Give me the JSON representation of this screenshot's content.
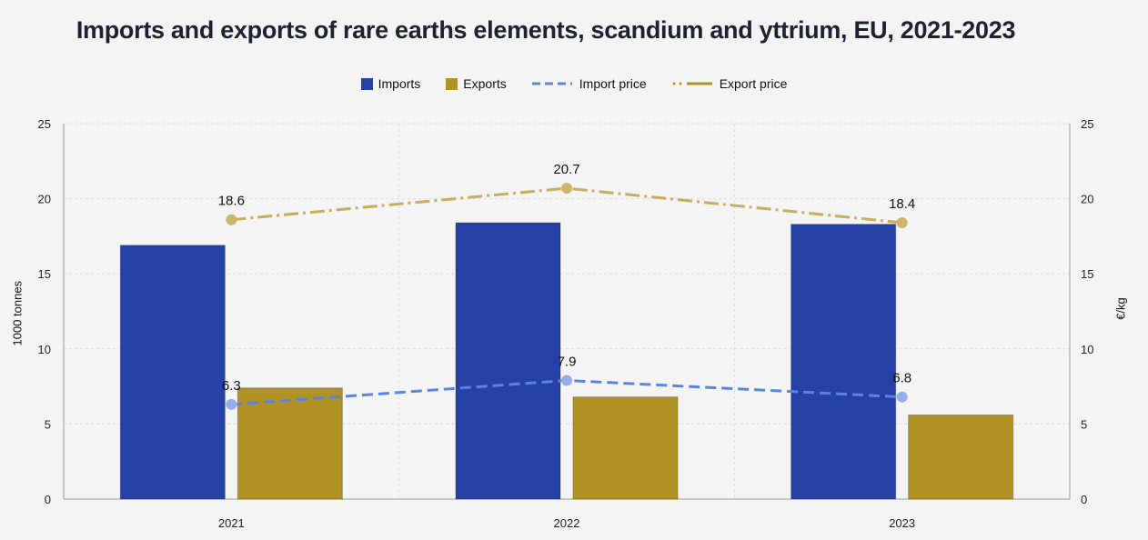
{
  "chart_data": {
    "type": "bar",
    "title": "Imports and exports of rare earths elements, scandium and yttrium, EU, 2021-2023",
    "categories": [
      "2021",
      "2022",
      "2023"
    ],
    "series": [
      {
        "name": "Imports",
        "kind": "bar",
        "axis": "left",
        "color": "#2541a5",
        "values": [
          16.9,
          18.4,
          18.3
        ]
      },
      {
        "name": "Exports",
        "kind": "bar",
        "axis": "left",
        "color": "#b09324",
        "values": [
          7.4,
          6.8,
          5.6
        ]
      },
      {
        "name": "Import price",
        "kind": "line",
        "axis": "right",
        "style": "dashed",
        "color": "#5b84de",
        "marker_color": "#94aeea",
        "values": [
          6.3,
          7.9,
          6.8
        ],
        "labels": [
          "6.3",
          "7.9",
          "6.8"
        ]
      },
      {
        "name": "Export price",
        "kind": "line",
        "axis": "right",
        "style": "dash-dot",
        "color": "#c7ae5d",
        "marker_color": "#cdb56c",
        "values": [
          18.6,
          20.7,
          18.4
        ],
        "labels": [
          "18.6",
          "20.7",
          "18.4"
        ]
      }
    ],
    "ylabel": "1000 tonnes",
    "y2label": "€/kg",
    "ylim": [
      0,
      25
    ],
    "y2lim": [
      0,
      25
    ],
    "yticks": [
      "0",
      "5",
      "10",
      "15",
      "20",
      "25"
    ],
    "y2ticks": [
      "0",
      "5",
      "10",
      "15",
      "20",
      "25"
    ],
    "grid": true,
    "legend": "top-center"
  }
}
